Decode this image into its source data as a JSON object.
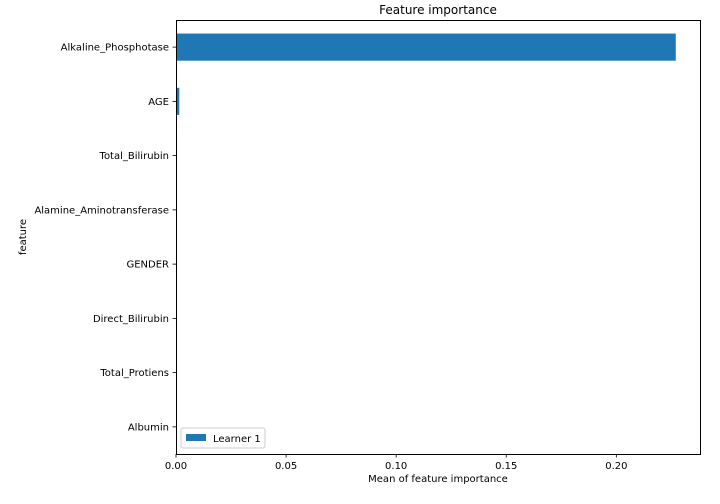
{
  "chart_data": {
    "type": "bar",
    "orientation": "horizontal",
    "title": "Feature importance",
    "xlabel": "Mean of feature importance",
    "ylabel": "feature",
    "xlim": [
      0,
      0.238
    ],
    "xticks": [
      0.0,
      0.05,
      0.1,
      0.15,
      0.2
    ],
    "xtick_labels": [
      "0.00",
      "0.05",
      "0.10",
      "0.15",
      "0.20"
    ],
    "categories": [
      "Alkaline_Phosphotase",
      "AGE",
      "Total_Bilirubin",
      "Alamine_Aminotransferase",
      "GENDER",
      "Direct_Bilirubin",
      "Total_Protiens",
      "Albumin"
    ],
    "series": [
      {
        "name": "Learner 1",
        "color": "#1f77b4",
        "values": [
          0.227,
          0.0015,
          0.0003,
          0.0002,
          0.0,
          0.0,
          0.0,
          0.0
        ]
      }
    ],
    "legend": {
      "position": "lower-left"
    },
    "grid": false
  }
}
